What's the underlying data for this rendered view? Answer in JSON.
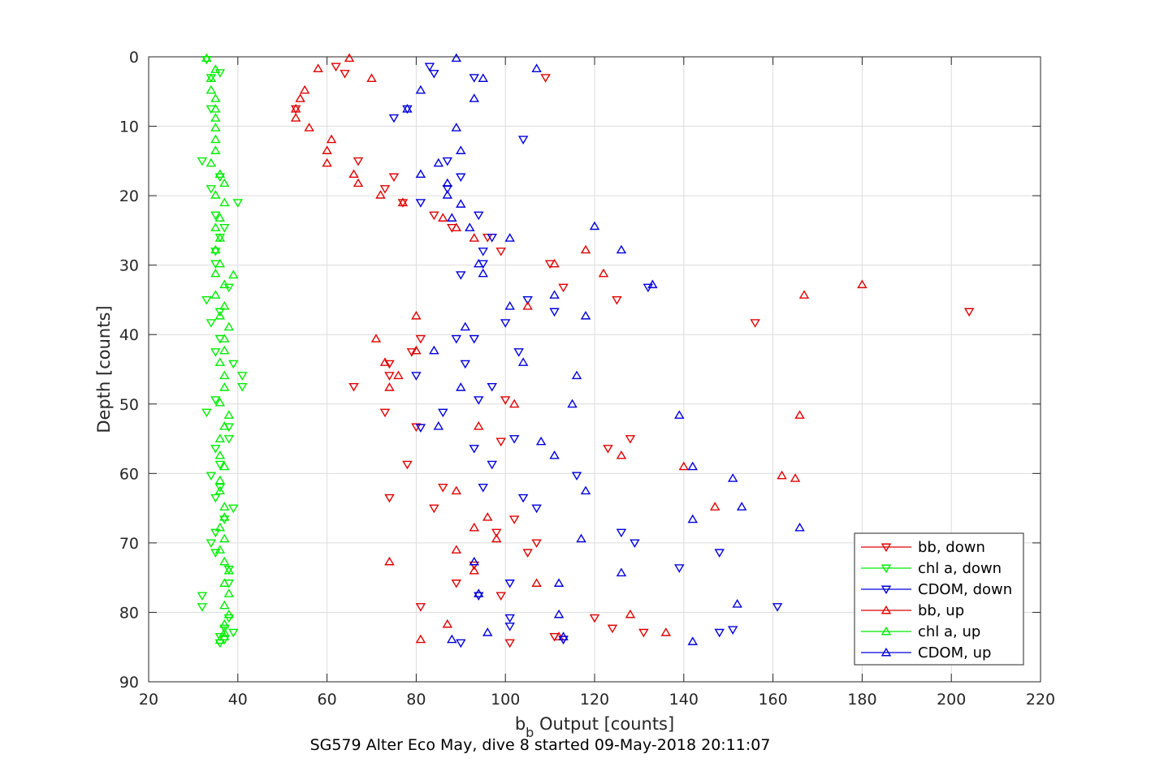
{
  "chart_data": {
    "type": "scatter",
    "title": "",
    "xlabel_main": "b",
    "xlabel_sub": "b",
    "xlabel_rest": " Output [counts]",
    "ylabel": "Depth [counts]",
    "caption": "SG579 Alter Eco May, dive 8 started 09-May-2018 20:11:07",
    "xlim": [
      20,
      220
    ],
    "ylim": [
      0,
      90
    ],
    "y_reversed": true,
    "grid": true,
    "legend_position": "bottom-right",
    "xticks": [
      "20",
      "40",
      "60",
      "80",
      "100",
      "120",
      "140",
      "160",
      "180",
      "200",
      "220"
    ],
    "yticks": [
      "0",
      "10",
      "20",
      "30",
      "40",
      "50",
      "60",
      "70",
      "80",
      "90"
    ],
    "series": [
      {
        "name": "bb, down",
        "color": "#e00000",
        "marker": "triangle-down",
        "points": [
          [
            62,
            1.4
          ],
          [
            64,
            2.4
          ],
          [
            109,
            3
          ],
          [
            53,
            7.5
          ],
          [
            67,
            15
          ],
          [
            75,
            17.3
          ],
          [
            73,
            19
          ],
          [
            77,
            21
          ],
          [
            84,
            22.8
          ],
          [
            88,
            24.6
          ],
          [
            96,
            26
          ],
          [
            99,
            28
          ],
          [
            110,
            29.8
          ],
          [
            113,
            33.2
          ],
          [
            125,
            35
          ],
          [
            204,
            36.7
          ],
          [
            156,
            38.3
          ],
          [
            81,
            40.6
          ],
          [
            79,
            42.5
          ],
          [
            74,
            44.2
          ],
          [
            74,
            45.9
          ],
          [
            66,
            47.5
          ],
          [
            100,
            49.4
          ],
          [
            73,
            51.2
          ],
          [
            80,
            53.3
          ],
          [
            128,
            55
          ],
          [
            99,
            55.4
          ],
          [
            123,
            56.4
          ],
          [
            78,
            58.7
          ],
          [
            86,
            62
          ],
          [
            74,
            63.5
          ],
          [
            84,
            65
          ],
          [
            102,
            66.6
          ],
          [
            98,
            68.5
          ],
          [
            107,
            70
          ],
          [
            105,
            71.4
          ],
          [
            93,
            73.2
          ],
          [
            89,
            75.8
          ],
          [
            99,
            77.6
          ],
          [
            81,
            79.2
          ],
          [
            120,
            80.8
          ],
          [
            124,
            82.3
          ],
          [
            131,
            82.9
          ],
          [
            111,
            83.5
          ],
          [
            113,
            83.9
          ],
          [
            101,
            84.4
          ]
        ]
      },
      {
        "name": "chl a, down",
        "color": "#00ee00",
        "marker": "triangle-down",
        "points": [
          [
            33,
            0.4
          ],
          [
            36,
            2.3
          ],
          [
            34,
            3
          ],
          [
            34,
            7.5
          ],
          [
            32,
            15
          ],
          [
            36,
            17.3
          ],
          [
            34,
            19
          ],
          [
            40,
            21
          ],
          [
            35,
            22.8
          ],
          [
            37,
            24.6
          ],
          [
            36,
            26
          ],
          [
            35,
            28
          ],
          [
            35,
            29.8
          ],
          [
            38,
            33.2
          ],
          [
            33,
            35
          ],
          [
            36,
            36.7
          ],
          [
            34,
            38.3
          ],
          [
            36,
            40.6
          ],
          [
            35,
            42.5
          ],
          [
            39,
            44.2
          ],
          [
            41,
            45.9
          ],
          [
            41,
            47.5
          ],
          [
            35,
            49.4
          ],
          [
            33,
            51.2
          ],
          [
            38,
            53.3
          ],
          [
            38,
            55
          ],
          [
            35,
            56.4
          ],
          [
            36,
            58.7
          ],
          [
            34,
            60.3
          ],
          [
            36,
            62
          ],
          [
            35,
            63.5
          ],
          [
            39,
            65
          ],
          [
            37,
            66.6
          ],
          [
            35,
            68.5
          ],
          [
            34,
            70
          ],
          [
            35,
            71.4
          ],
          [
            38,
            73.8
          ],
          [
            38,
            75.8
          ],
          [
            32,
            77.6
          ],
          [
            32,
            79.2
          ],
          [
            38,
            80.8
          ],
          [
            37,
            82.3
          ],
          [
            39,
            82.9
          ],
          [
            36,
            83.5
          ],
          [
            37,
            83.9
          ],
          [
            36,
            84.4
          ]
        ]
      },
      {
        "name": "CDOM, down",
        "color": "#0000dd",
        "marker": "triangle-down",
        "points": [
          [
            83,
            1.4
          ],
          [
            84,
            2.4
          ],
          [
            93,
            3
          ],
          [
            78,
            7.5
          ],
          [
            75,
            8.8
          ],
          [
            104,
            11.9
          ],
          [
            87,
            15
          ],
          [
            90,
            17.3
          ],
          [
            87,
            19
          ],
          [
            81,
            21
          ],
          [
            94,
            22.8
          ],
          [
            97,
            26
          ],
          [
            95,
            28
          ],
          [
            95,
            29.8
          ],
          [
            90,
            31.4
          ],
          [
            132,
            33.2
          ],
          [
            105,
            35
          ],
          [
            111,
            36.7
          ],
          [
            100,
            38.3
          ],
          [
            93,
            40.6
          ],
          [
            89,
            40.6
          ],
          [
            103,
            42.5
          ],
          [
            91,
            44.2
          ],
          [
            80,
            45.9
          ],
          [
            97,
            47.5
          ],
          [
            94,
            49.4
          ],
          [
            86,
            51.2
          ],
          [
            81,
            53.4
          ],
          [
            102,
            55
          ],
          [
            93,
            56.4
          ],
          [
            97,
            58.7
          ],
          [
            116,
            60.3
          ],
          [
            95,
            62
          ],
          [
            104,
            63.5
          ],
          [
            107,
            65
          ],
          [
            126,
            68.5
          ],
          [
            129,
            70
          ],
          [
            148,
            71.4
          ],
          [
            139,
            73.6
          ],
          [
            101,
            75.8
          ],
          [
            94,
            77.6
          ],
          [
            161,
            79.2
          ],
          [
            101,
            80.8
          ],
          [
            101,
            82
          ],
          [
            148,
            82.9
          ],
          [
            151,
            82.5
          ],
          [
            90,
            84.4
          ],
          [
            113,
            83.9
          ]
        ]
      },
      {
        "name": "bb, up",
        "color": "#e00000",
        "marker": "triangle-up",
        "points": [
          [
            65,
            0.2
          ],
          [
            58,
            1.7
          ],
          [
            70,
            3.1
          ],
          [
            55,
            4.8
          ],
          [
            54,
            6
          ],
          [
            53,
            7.5
          ],
          [
            53,
            8.8
          ],
          [
            56,
            10.2
          ],
          [
            61,
            11.9
          ],
          [
            60,
            13.5
          ],
          [
            60,
            15.3
          ],
          [
            66,
            16.9
          ],
          [
            67,
            18.2
          ],
          [
            72,
            19.9
          ],
          [
            77,
            21
          ],
          [
            86,
            23.2
          ],
          [
            89,
            24.6
          ],
          [
            93,
            26.1
          ],
          [
            118,
            27.8
          ],
          [
            111,
            29.8
          ],
          [
            122,
            31.2
          ],
          [
            180,
            32.8
          ],
          [
            167,
            34.3
          ],
          [
            105,
            35.9
          ],
          [
            80,
            37.3
          ],
          [
            71,
            40.6
          ],
          [
            80,
            42.3
          ],
          [
            73,
            44
          ],
          [
            76,
            45.9
          ],
          [
            74,
            47.6
          ],
          [
            102,
            50
          ],
          [
            166,
            51.6
          ],
          [
            94,
            53.2
          ],
          [
            126,
            57.4
          ],
          [
            140,
            59
          ],
          [
            162,
            60.3
          ],
          [
            165,
            60.7
          ],
          [
            89,
            62.5
          ],
          [
            147,
            64.8
          ],
          [
            96,
            66.3
          ],
          [
            93,
            67.8
          ],
          [
            98,
            69.4
          ],
          [
            89,
            71
          ],
          [
            74,
            72.7
          ],
          [
            93,
            74
          ],
          [
            107,
            75.8
          ],
          [
            128,
            80.3
          ],
          [
            87,
            81.7
          ],
          [
            136,
            82.9
          ],
          [
            81,
            83.9
          ],
          [
            112,
            83.5
          ]
        ]
      },
      {
        "name": "chl a, up",
        "color": "#00ee00",
        "marker": "triangle-up",
        "points": [
          [
            33,
            0.2
          ],
          [
            35,
            1.8
          ],
          [
            34,
            3.1
          ],
          [
            34,
            4.8
          ],
          [
            35,
            6
          ],
          [
            35,
            7.5
          ],
          [
            35,
            8.8
          ],
          [
            35,
            10.2
          ],
          [
            35,
            11.9
          ],
          [
            35,
            13.5
          ],
          [
            34,
            15.3
          ],
          [
            36,
            16.9
          ],
          [
            37,
            18.2
          ],
          [
            35,
            19.9
          ],
          [
            37,
            21
          ],
          [
            36,
            23.2
          ],
          [
            35,
            24.6
          ],
          [
            36,
            26.1
          ],
          [
            35,
            27.8
          ],
          [
            36,
            29.8
          ],
          [
            39,
            31.4
          ],
          [
            35,
            31.2
          ],
          [
            37,
            32.8
          ],
          [
            35,
            34.3
          ],
          [
            37,
            35.9
          ],
          [
            36,
            37.3
          ],
          [
            38,
            38.9
          ],
          [
            37,
            40.6
          ],
          [
            37,
            42.3
          ],
          [
            36,
            44
          ],
          [
            37,
            45.9
          ],
          [
            37,
            47.6
          ],
          [
            36,
            49.8
          ],
          [
            38,
            51.6
          ],
          [
            37,
            53.2
          ],
          [
            36,
            55
          ],
          [
            36,
            57.4
          ],
          [
            37,
            59
          ],
          [
            36,
            61
          ],
          [
            36,
            62.5
          ],
          [
            37,
            64.8
          ],
          [
            37,
            66.3
          ],
          [
            36,
            67.8
          ],
          [
            37,
            69.4
          ],
          [
            36,
            71
          ],
          [
            37,
            72.7
          ],
          [
            38,
            74
          ],
          [
            37,
            75.8
          ],
          [
            38,
            77.3
          ],
          [
            37,
            79
          ],
          [
            38,
            80.3
          ],
          [
            37,
            81.7
          ],
          [
            37,
            82.9
          ],
          [
            37,
            83.5
          ],
          [
            36,
            84
          ]
        ]
      },
      {
        "name": "CDOM, up",
        "color": "#0000dd",
        "marker": "triangle-up",
        "points": [
          [
            89,
            0.2
          ],
          [
            107,
            1.7
          ],
          [
            95,
            3.1
          ],
          [
            81,
            4.8
          ],
          [
            93,
            6
          ],
          [
            78,
            7.5
          ],
          [
            89,
            10.2
          ],
          [
            90,
            13.5
          ],
          [
            85,
            15.3
          ],
          [
            81,
            16.9
          ],
          [
            87,
            18.2
          ],
          [
            87,
            19.9
          ],
          [
            90,
            21.2
          ],
          [
            88,
            23.2
          ],
          [
            92,
            24.6
          ],
          [
            120,
            24.4
          ],
          [
            101,
            26.1
          ],
          [
            126,
            27.8
          ],
          [
            94,
            29.8
          ],
          [
            95,
            31.2
          ],
          [
            133,
            32.8
          ],
          [
            111,
            34.3
          ],
          [
            101,
            35.9
          ],
          [
            118,
            37.3
          ],
          [
            91,
            38.9
          ],
          [
            84,
            42.3
          ],
          [
            104,
            44
          ],
          [
            116,
            45.9
          ],
          [
            90,
            47.6
          ],
          [
            115,
            50
          ],
          [
            139,
            51.6
          ],
          [
            85,
            53.2
          ],
          [
            108,
            55.4
          ],
          [
            111,
            57.4
          ],
          [
            142,
            59
          ],
          [
            151,
            60.7
          ],
          [
            118,
            62.5
          ],
          [
            153,
            64.8
          ],
          [
            142,
            66.6
          ],
          [
            166,
            67.8
          ],
          [
            117,
            69.4
          ],
          [
            93,
            72.7
          ],
          [
            126,
            74.3
          ],
          [
            112,
            75.8
          ],
          [
            94,
            77.3
          ],
          [
            152,
            78.8
          ],
          [
            112,
            80.3
          ],
          [
            96,
            82.9
          ],
          [
            88,
            83.9
          ],
          [
            113,
            83.5
          ],
          [
            142,
            84.2
          ]
        ]
      }
    ]
  }
}
